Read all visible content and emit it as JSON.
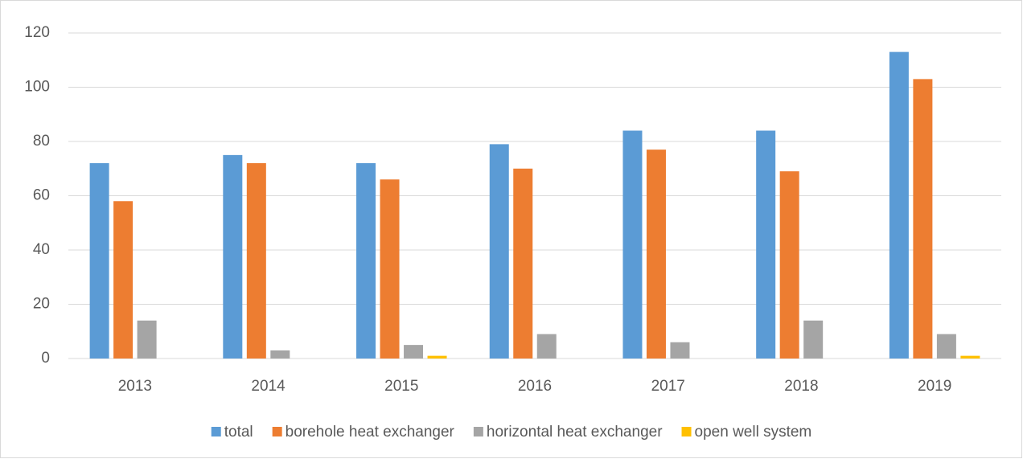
{
  "chart_data": {
    "type": "bar",
    "categories": [
      "2013",
      "2014",
      "2015",
      "2016",
      "2017",
      "2018",
      "2019"
    ],
    "series": [
      {
        "name": "total",
        "color": "#5b9bd5",
        "values": [
          72,
          75,
          72,
          79,
          84,
          84,
          113
        ]
      },
      {
        "name": "borehole heat exchanger",
        "color": "#ed7d31",
        "values": [
          58,
          72,
          66,
          70,
          77,
          69,
          103
        ]
      },
      {
        "name": "horizontal heat exchanger",
        "color": "#a5a5a5",
        "values": [
          14,
          3,
          5,
          9,
          6,
          14,
          9
        ]
      },
      {
        "name": "open well system",
        "color": "#ffc000",
        "values": [
          0,
          0,
          1,
          0,
          0,
          0,
          1
        ]
      }
    ],
    "ylim": [
      0,
      120
    ],
    "yticks": [
      0,
      20,
      40,
      60,
      80,
      100,
      120
    ],
    "grid": true,
    "legend": "bottom"
  }
}
